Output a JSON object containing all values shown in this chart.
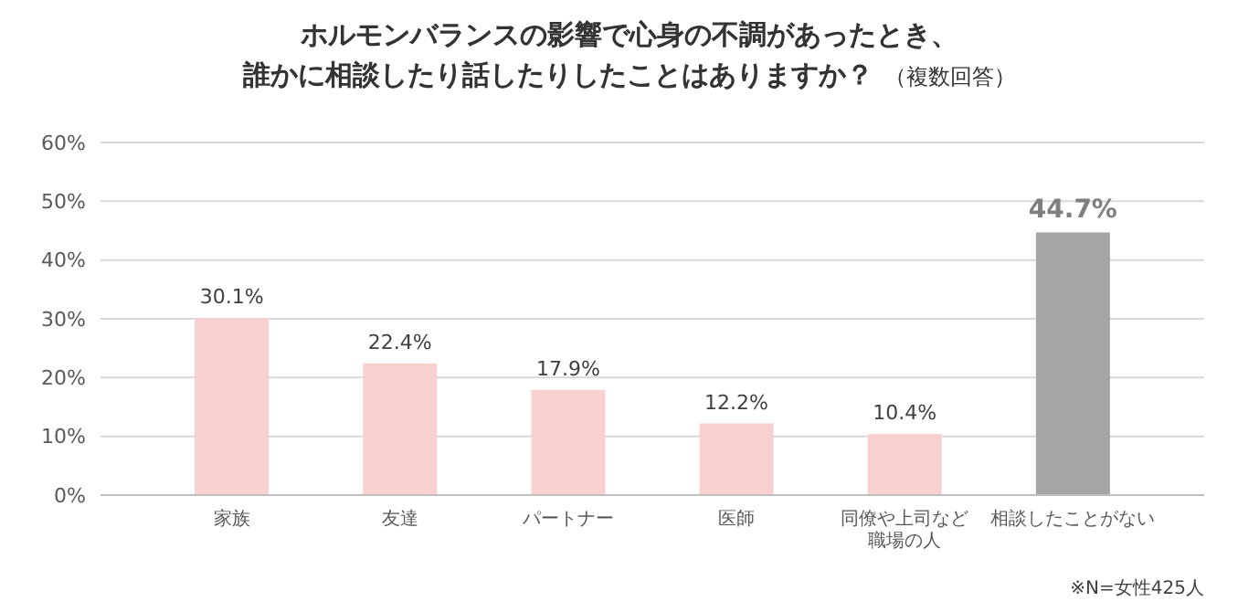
{
  "chart_data": {
    "type": "bar",
    "title": "ホルモンバランスの影響で心身の不調があったとき、誰かに相談したり話したりしたことはありますか？",
    "subtitle": "（複数回答）",
    "categories": [
      "家族",
      "友達",
      "パートナー",
      "医師",
      "同僚や上司など職場の人",
      "相談したことがない"
    ],
    "values": [
      30.1,
      22.4,
      17.9,
      12.2,
      10.4,
      44.7
    ],
    "colors": [
      "#f8d0d0",
      "#f8d0d0",
      "#f8d0d0",
      "#f8d0d0",
      "#f8d0d0",
      "#a5a5a5"
    ],
    "value_labels": [
      "30.1%",
      "22.4%",
      "17.9%",
      "12.2%",
      "10.4%",
      "44.7%"
    ],
    "ylim": [
      0,
      60
    ],
    "yticks": [
      {
        "value": 0,
        "label": "0%"
      },
      {
        "value": 10,
        "label": "10%"
      },
      {
        "value": 20,
        "label": "20%"
      },
      {
        "value": 30,
        "label": "30%"
      },
      {
        "value": 40,
        "label": "40%"
      },
      {
        "value": 50,
        "label": "50%"
      },
      {
        "value": 60,
        "label": "60%"
      }
    ],
    "grid": "y",
    "annotations": [
      "※N=女性425人"
    ]
  }
}
